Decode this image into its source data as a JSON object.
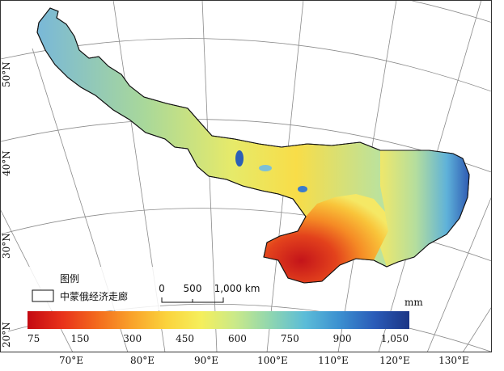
{
  "map": {
    "lat_labels": [
      "50°N",
      "40°N",
      "30°N",
      "20°N"
    ],
    "lon_labels": [
      "70°E",
      "80°E",
      "90°E",
      "100°E",
      "110°E",
      "120°E",
      "130°E"
    ],
    "legend": {
      "title": "图例",
      "item_label": "中蒙俄经济走廊"
    },
    "scale_bar": {
      "labels": [
        "0",
        "500",
        "1,000 km"
      ]
    },
    "colorbar": {
      "unit": "mm",
      "ticks": [
        "75",
        "150",
        "300",
        "450",
        "600",
        "750",
        "900",
        "1,050"
      ],
      "colors": [
        "#c40a12",
        "#e8321a",
        "#f36a1d",
        "#f9a22a",
        "#fbd33c",
        "#f5ef5c",
        "#c9e98a",
        "#8fd6b0",
        "#5bbcd8",
        "#3b8fd0",
        "#2a5bb8",
        "#1b3585"
      ]
    }
  }
}
